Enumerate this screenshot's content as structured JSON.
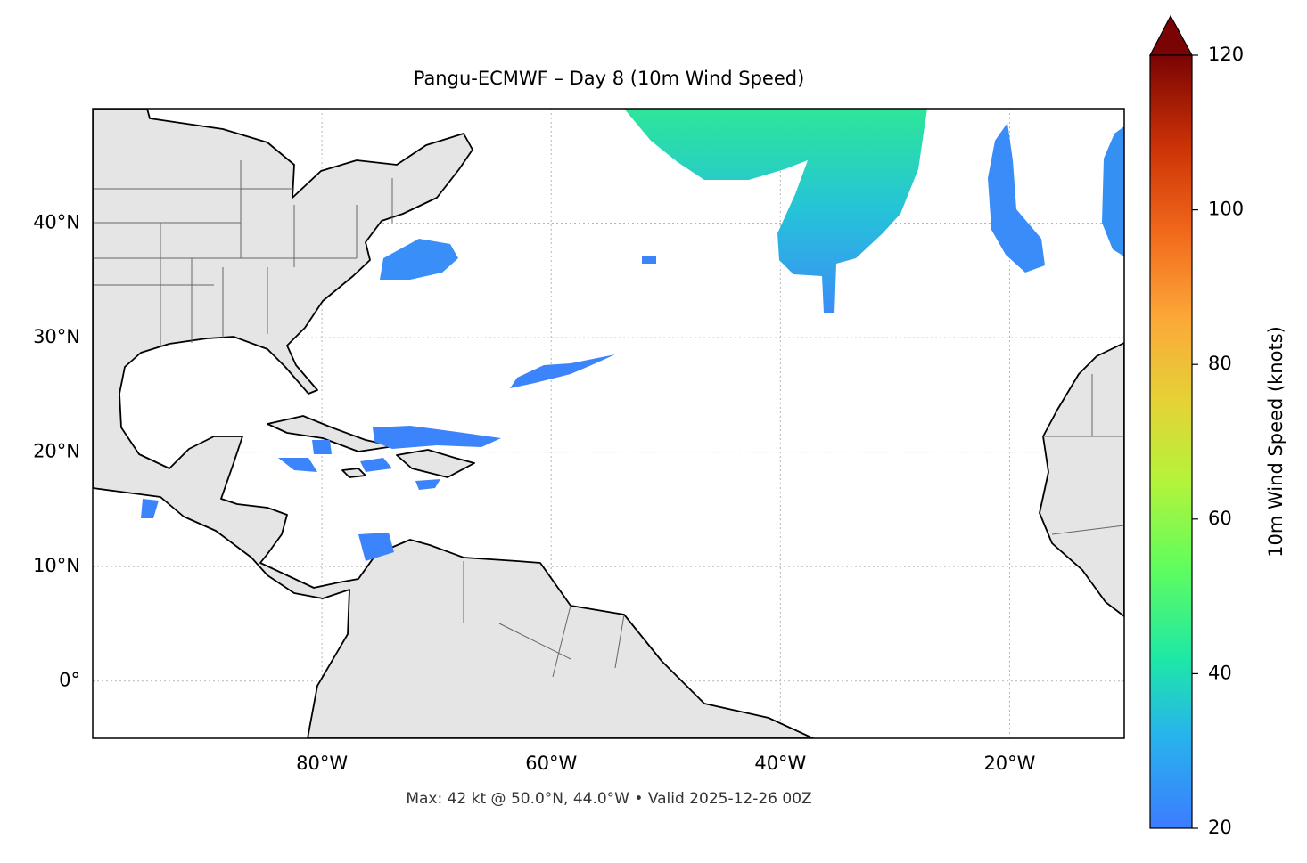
{
  "chart_data": {
    "type": "map",
    "title": "Pangu-ECMWF – Day 8 (10m Wind Speed)",
    "footnote": "Max: 42 kt @ 50.0°N, 44.0°W • Valid 2025-12-26 00Z",
    "xlim": [
      -100,
      -10
    ],
    "ylim": [
      -5,
      50
    ],
    "xticks": [
      {
        "value": -80,
        "label": "80°W"
      },
      {
        "value": -60,
        "label": "60°W"
      },
      {
        "value": -40,
        "label": "40°W"
      },
      {
        "value": -20,
        "label": "20°W"
      }
    ],
    "yticks": [
      {
        "value": 0,
        "label": "0°"
      },
      {
        "value": 10,
        "label": "10°N"
      },
      {
        "value": 20,
        "label": "20°N"
      },
      {
        "value": 30,
        "label": "30°N"
      },
      {
        "value": 40,
        "label": "40°N"
      }
    ],
    "grid": true,
    "colorbar": {
      "label": "10m Wind Speed (knots)",
      "lim": [
        20,
        120
      ],
      "ticks": [
        20,
        40,
        60,
        80,
        100,
        120
      ]
    }
  }
}
